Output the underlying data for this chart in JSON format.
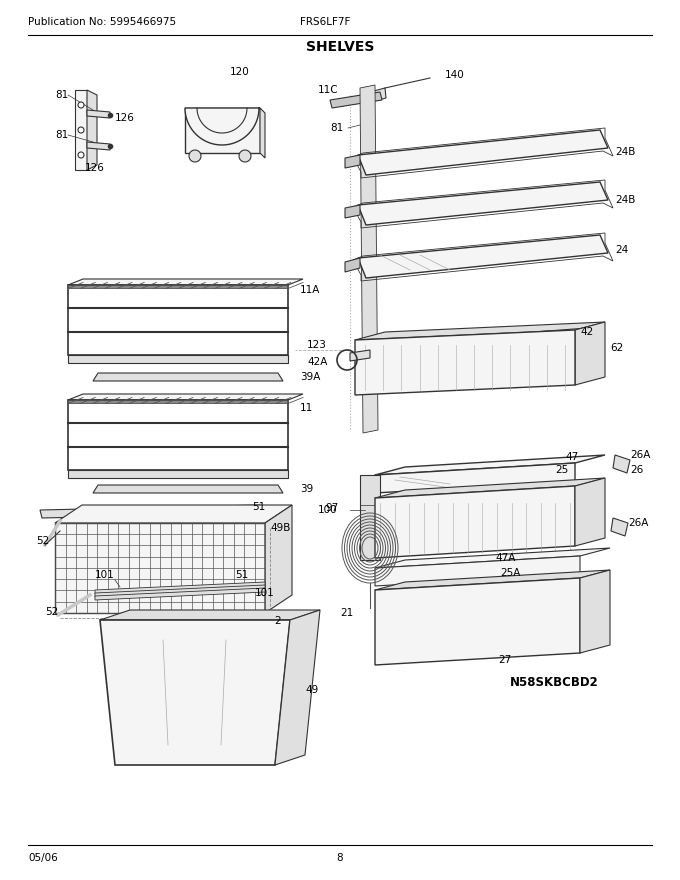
{
  "title": "SHELVES",
  "header_left": "Publication No: 5995466975",
  "header_center": "FRS6LF7F",
  "footer_left": "05/06",
  "footer_center": "8",
  "model": "N58SKBCBD2",
  "bg_color": "#ffffff",
  "text_color": "#000000",
  "fig_width": 6.8,
  "fig_height": 8.8,
  "dpi": 100,
  "line_color": "#333333",
  "grid_color": "#555555",
  "fill_light": "#f5f5f5",
  "fill_mid": "#e0e0e0",
  "fill_dark": "#c8c8c8"
}
